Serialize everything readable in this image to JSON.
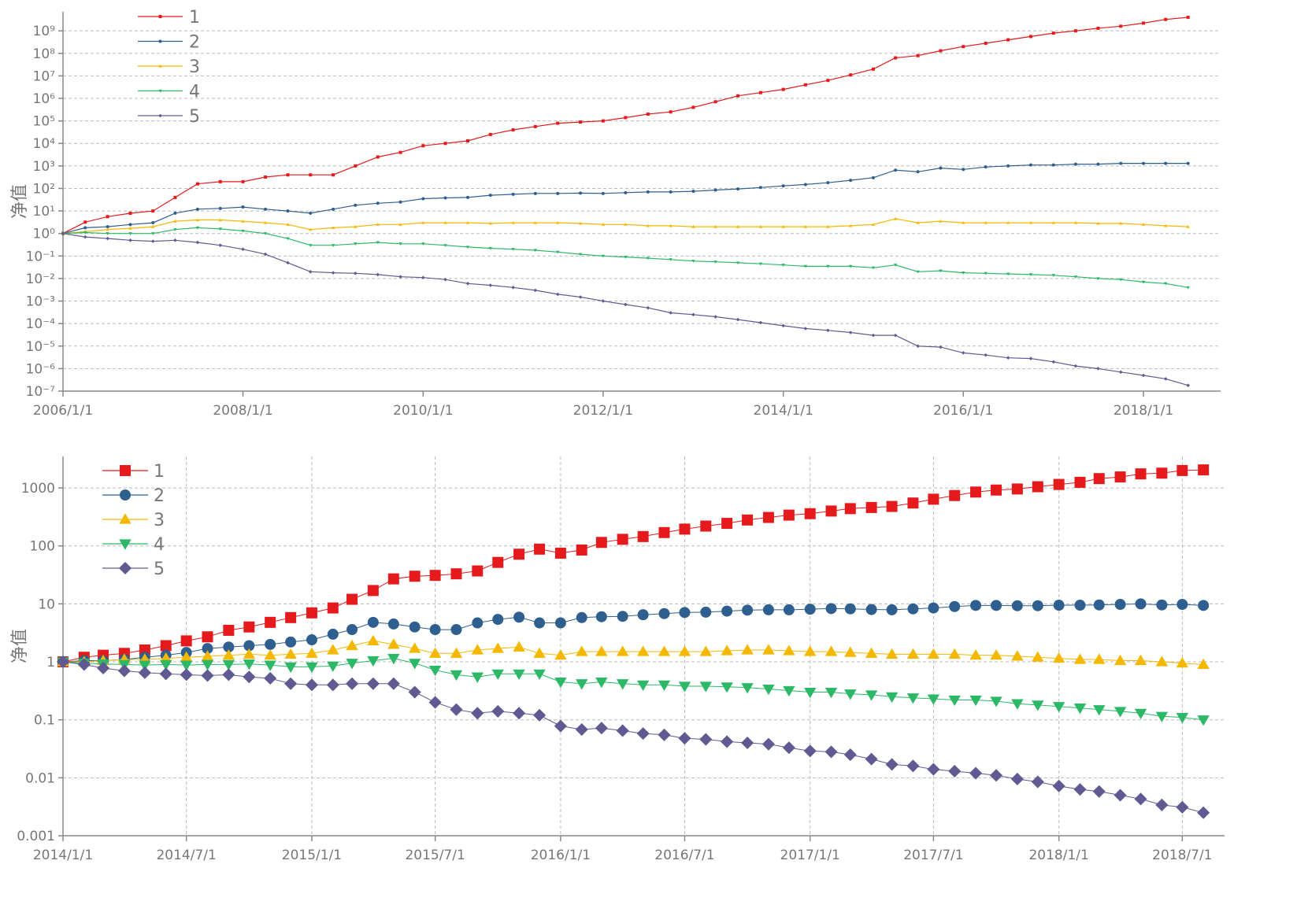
{
  "chart_data": [
    {
      "type": "line",
      "log_y": true,
      "ylabel": "净值",
      "legend": "upper left",
      "grid_x": false,
      "grid_y": true,
      "marker_size": 4,
      "x": [
        "2006/1/1",
        "2006/4/1",
        "2006/7/1",
        "2006/10/1",
        "2007/1/1",
        "2007/4/1",
        "2007/7/1",
        "2007/10/1",
        "2008/1/1",
        "2008/4/1",
        "2008/7/1",
        "2008/10/1",
        "2009/1/1",
        "2009/4/1",
        "2009/7/1",
        "2009/10/1",
        "2010/1/1",
        "2010/4/1",
        "2010/7/1",
        "2010/10/1",
        "2011/1/1",
        "2011/4/1",
        "2011/7/1",
        "2011/10/1",
        "2012/1/1",
        "2012/4/1",
        "2012/7/1",
        "2012/10/1",
        "2013/1/1",
        "2013/4/1",
        "2013/7/1",
        "2013/10/1",
        "2014/1/1",
        "2014/4/1",
        "2014/7/1",
        "2014/10/1",
        "2015/1/1",
        "2015/4/1",
        "2015/7/1",
        "2015/10/1",
        "2016/1/1",
        "2016/4/1",
        "2016/7/1",
        "2016/10/1",
        "2017/1/1",
        "2017/4/1",
        "2017/7/1",
        "2017/10/1",
        "2018/1/1",
        "2018/4/1",
        "2018/7/1"
      ],
      "xlim": [
        "2006/1/1",
        "2018/11/10"
      ],
      "xticks": [
        "2006/1/1",
        "2008/1/1",
        "2010/1/1",
        "2012/1/1",
        "2014/1/1",
        "2016/1/1",
        "2018/1/1"
      ],
      "ylim": [
        1e-07,
        7000000000.0
      ],
      "yticks": [
        {
          "value": 1e-07,
          "label": "10⁻⁷"
        },
        {
          "value": 1e-06,
          "label": "10⁻⁶"
        },
        {
          "value": 1e-05,
          "label": "10⁻⁵"
        },
        {
          "value": 0.0001,
          "label": "10⁻⁴"
        },
        {
          "value": 0.001,
          "label": "10⁻³"
        },
        {
          "value": 0.01,
          "label": "10⁻²"
        },
        {
          "value": 0.1,
          "label": "10⁻¹"
        },
        {
          "value": 1,
          "label": "10⁰"
        },
        {
          "value": 10,
          "label": "10¹"
        },
        {
          "value": 100,
          "label": "10²"
        },
        {
          "value": 1000,
          "label": "10³"
        },
        {
          "value": 10000.0,
          "label": "10⁴"
        },
        {
          "value": 100000.0,
          "label": "10⁵"
        },
        {
          "value": 1000000.0,
          "label": "10⁶"
        },
        {
          "value": 10000000.0,
          "label": "10⁷"
        },
        {
          "value": 100000000.0,
          "label": "10⁸"
        },
        {
          "value": 1000000000.0,
          "label": "10⁹"
        }
      ],
      "series": [
        {
          "name": "1",
          "color": "#e41a1c",
          "marker": "square",
          "values": [
            1,
            3.2,
            5.6,
            7.9,
            10,
            40,
            160,
            200,
            200,
            320,
            400,
            400,
            400,
            1000,
            2500,
            4000,
            7900,
            10000.0,
            13000.0,
            25000.0,
            40000.0,
            56000.0,
            79000.0,
            89000.0,
            100000.0,
            140000.0,
            200000.0,
            250000.0,
            400000.0,
            710000.0,
            1300000.0,
            1800000.0,
            2500000.0,
            4000000.0,
            6300000.0,
            11000000.0,
            20000000.0,
            63000000.0,
            79000000.0,
            130000000.0,
            200000000.0,
            280000000.0,
            400000000.0,
            560000000.0,
            790000000.0,
            1000000000.0,
            1300000000.0,
            1600000000.0,
            2200000000.0,
            3200000000.0,
            4000000000.0
          ]
        },
        {
          "name": "2",
          "color": "#2f5f8f",
          "marker": "circle",
          "values": [
            1,
            1.8,
            2,
            2.5,
            3,
            8,
            12,
            13,
            15,
            12,
            10,
            8,
            12,
            18,
            22,
            25,
            35,
            38,
            40,
            50,
            55,
            60,
            60,
            62,
            60,
            65,
            70,
            70,
            75,
            85,
            95,
            110,
            130,
            150,
            180,
            230,
            300,
            650,
            550,
            800,
            700,
            900,
            1000,
            1100,
            1100,
            1200,
            1200,
            1300,
            1300,
            1300,
            1300
          ]
        },
        {
          "name": "3",
          "color": "#f5b800",
          "marker": "triangle-up",
          "values": [
            1,
            1.2,
            1.5,
            1.7,
            2,
            3.5,
            4,
            4,
            3.5,
            3,
            2.5,
            1.5,
            1.8,
            2,
            2.5,
            2.5,
            3,
            3,
            3,
            2.8,
            3,
            3,
            3,
            2.8,
            2.5,
            2.5,
            2.2,
            2.2,
            2,
            2,
            2,
            2,
            2,
            2,
            2,
            2.2,
            2.5,
            4.5,
            3,
            3.5,
            3,
            3,
            3,
            3,
            3,
            3,
            2.8,
            2.8,
            2.5,
            2.2,
            2
          ]
        },
        {
          "name": "4",
          "color": "#2cb866",
          "marker": "triangle-down",
          "values": [
            1,
            1.1,
            1,
            1,
            1,
            1.5,
            1.8,
            1.6,
            1.3,
            1,
            0.6,
            0.3,
            0.3,
            0.35,
            0.4,
            0.35,
            0.35,
            0.3,
            0.25,
            0.22,
            0.2,
            0.18,
            0.15,
            0.12,
            0.1,
            0.09,
            0.08,
            0.07,
            0.06,
            0.055,
            0.05,
            0.045,
            0.04,
            0.035,
            0.035,
            0.035,
            0.03,
            0.04,
            0.02,
            0.022,
            0.018,
            0.017,
            0.016,
            0.015,
            0.014,
            0.012,
            0.01,
            0.009,
            0.007,
            0.006,
            0.004
          ]
        },
        {
          "name": "5",
          "color": "#5f5a92",
          "marker": "diamond",
          "values": [
            1,
            0.7,
            0.6,
            0.5,
            0.45,
            0.5,
            0.4,
            0.3,
            0.2,
            0.12,
            0.05,
            0.02,
            0.018,
            0.017,
            0.015,
            0.012,
            0.011,
            0.009,
            0.006,
            0.005,
            0.004,
            0.003,
            0.002,
            0.0015,
            0.001,
            0.0007,
            0.0005,
            0.0003,
            0.00025,
            0.0002,
            0.00015,
            0.00011,
            8e-05,
            6e-05,
            5e-05,
            4e-05,
            3e-05,
            3e-05,
            1e-05,
            9e-06,
            5e-06,
            4e-06,
            3e-06,
            2.8e-06,
            2e-06,
            1.3e-06,
            1e-06,
            7e-07,
            5e-07,
            3.5e-07,
            1.8e-07
          ]
        }
      ]
    },
    {
      "type": "line",
      "log_y": true,
      "ylabel": "净值",
      "legend": "upper left",
      "grid_x": true,
      "grid_y": true,
      "marker_size": 14,
      "x": [
        "2014/1/1",
        "2014/2/1",
        "2014/3/1",
        "2014/4/1",
        "2014/5/1",
        "2014/6/1",
        "2014/7/1",
        "2014/8/1",
        "2014/9/1",
        "2014/10/1",
        "2014/11/1",
        "2014/12/1",
        "2015/1/1",
        "2015/2/1",
        "2015/3/1",
        "2015/4/1",
        "2015/5/1",
        "2015/6/1",
        "2015/7/1",
        "2015/8/1",
        "2015/9/1",
        "2015/10/1",
        "2015/11/1",
        "2015/12/1",
        "2016/1/1",
        "2016/2/1",
        "2016/3/1",
        "2016/4/1",
        "2016/5/1",
        "2016/6/1",
        "2016/7/1",
        "2016/8/1",
        "2016/9/1",
        "2016/10/1",
        "2016/11/1",
        "2016/12/1",
        "2017/1/1",
        "2017/2/1",
        "2017/3/1",
        "2017/4/1",
        "2017/5/1",
        "2017/6/1",
        "2017/7/1",
        "2017/8/1",
        "2017/9/1",
        "2017/10/1",
        "2017/11/1",
        "2017/12/1",
        "2018/1/1",
        "2018/2/1",
        "2018/3/1",
        "2018/4/1",
        "2018/5/1",
        "2018/6/1",
        "2018/7/1",
        "2018/8/1"
      ],
      "xlim": [
        "2014/1/1",
        "2018/9/1"
      ],
      "xticks": [
        "2014/1/1",
        "2014/7/1",
        "2015/1/1",
        "2015/7/1",
        "2016/1/1",
        "2016/7/1",
        "2017/1/1",
        "2017/7/1",
        "2018/1/1",
        "2018/7/1"
      ],
      "ylim": [
        0.001,
        3500
      ],
      "yticks": [
        0.001,
        0.01,
        0.1,
        1,
        10,
        100,
        1000
      ],
      "series": [
        {
          "name": "1",
          "color": "#e41a1c",
          "marker": "square",
          "values": [
            1,
            1.2,
            1.3,
            1.4,
            1.6,
            1.9,
            2.3,
            2.7,
            3.5,
            4,
            4.8,
            5.8,
            7,
            8.5,
            12,
            17,
            27,
            30,
            31,
            33,
            37,
            52,
            72,
            88,
            75,
            85,
            115,
            130,
            145,
            170,
            195,
            220,
            245,
            280,
            310,
            340,
            360,
            400,
            440,
            460,
            480,
            550,
            640,
            740,
            850,
            920,
            960,
            1050,
            1150,
            1250,
            1450,
            1550,
            1750,
            1800,
            2000,
            2050
          ]
        },
        {
          "name": "2",
          "color": "#2f5f8f",
          "marker": "circle",
          "values": [
            1,
            1.05,
            1.05,
            1.1,
            1.2,
            1.3,
            1.45,
            1.7,
            1.8,
            1.9,
            2,
            2.2,
            2.4,
            3,
            3.6,
            4.8,
            4.5,
            4,
            3.6,
            3.6,
            4.7,
            5.4,
            5.9,
            4.7,
            4.7,
            5.8,
            6,
            6.1,
            6.5,
            6.8,
            7.1,
            7.2,
            7.5,
            7.8,
            7.9,
            7.9,
            8.1,
            8.3,
            8.2,
            8,
            7.9,
            8.2,
            8.5,
            9,
            9.4,
            9.4,
            9.3,
            9.3,
            9.5,
            9.5,
            9.6,
            9.8,
            10,
            9.6,
            9.8,
            9.4
          ]
        },
        {
          "name": "3",
          "color": "#f5b800",
          "marker": "triangle-up",
          "values": [
            1,
            1,
            1.05,
            1.1,
            1.1,
            1.15,
            1.2,
            1.25,
            1.3,
            1.35,
            1.3,
            1.35,
            1.4,
            1.6,
            1.9,
            2.3,
            2,
            1.7,
            1.4,
            1.4,
            1.6,
            1.7,
            1.8,
            1.4,
            1.3,
            1.5,
            1.5,
            1.5,
            1.5,
            1.5,
            1.5,
            1.5,
            1.55,
            1.6,
            1.6,
            1.55,
            1.5,
            1.5,
            1.45,
            1.4,
            1.35,
            1.35,
            1.35,
            1.35,
            1.3,
            1.3,
            1.25,
            1.2,
            1.15,
            1.1,
            1.1,
            1.05,
            1.05,
            1,
            0.95,
            0.9
          ]
        },
        {
          "name": "4",
          "color": "#2cb866",
          "marker": "triangle-down",
          "values": [
            1,
            0.95,
            0.92,
            0.9,
            0.88,
            0.9,
            0.88,
            0.9,
            0.9,
            0.92,
            0.88,
            0.82,
            0.82,
            0.85,
            0.95,
            1.05,
            1.15,
            0.95,
            0.72,
            0.6,
            0.55,
            0.62,
            0.62,
            0.62,
            0.45,
            0.42,
            0.45,
            0.42,
            0.4,
            0.4,
            0.38,
            0.38,
            0.37,
            0.36,
            0.34,
            0.32,
            0.3,
            0.3,
            0.28,
            0.27,
            0.25,
            0.24,
            0.23,
            0.22,
            0.22,
            0.21,
            0.19,
            0.18,
            0.17,
            0.16,
            0.15,
            0.14,
            0.13,
            0.115,
            0.11,
            0.1
          ]
        },
        {
          "name": "5",
          "color": "#5f5a92",
          "marker": "diamond",
          "values": [
            1,
            0.9,
            0.78,
            0.7,
            0.65,
            0.62,
            0.6,
            0.58,
            0.6,
            0.55,
            0.52,
            0.42,
            0.4,
            0.4,
            0.42,
            0.42,
            0.42,
            0.3,
            0.2,
            0.15,
            0.13,
            0.14,
            0.13,
            0.12,
            0.078,
            0.068,
            0.072,
            0.065,
            0.058,
            0.055,
            0.048,
            0.046,
            0.042,
            0.04,
            0.038,
            0.033,
            0.029,
            0.028,
            0.025,
            0.021,
            0.017,
            0.016,
            0.014,
            0.013,
            0.012,
            0.011,
            0.0095,
            0.0085,
            0.0072,
            0.0063,
            0.0058,
            0.005,
            0.0043,
            0.0034,
            0.0031,
            0.0025
          ]
        }
      ]
    }
  ]
}
